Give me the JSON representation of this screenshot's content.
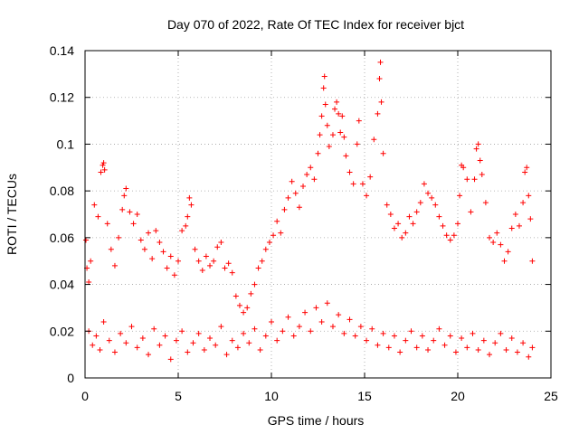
{
  "chart_data": {
    "type": "scatter",
    "title": "Day 070 of 2022, Rate Of TEC Index for receiver bjct",
    "xlabel": "GPS time / hours",
    "ylabel": "ROTI / TECUs",
    "xlim": [
      0,
      25
    ],
    "ylim": [
      0,
      0.14
    ],
    "xticks": [
      0,
      5,
      10,
      15,
      20,
      25
    ],
    "yticks": [
      0,
      0.02,
      0.04,
      0.06,
      0.08,
      0.1,
      0.12,
      0.14
    ],
    "xtick_labels": [
      "0",
      "5",
      "10",
      "15",
      "20",
      "25"
    ],
    "ytick_labels": [
      "0",
      "0.02",
      "0.04",
      "0.06",
      "0.08",
      "0.1",
      "0.12",
      "0.14"
    ],
    "grid": true,
    "marker": "+",
    "color": "#ff0000",
    "series": [
      {
        "name": "ROTI",
        "points": [
          [
            0.05,
            0.059
          ],
          [
            0.1,
            0.047
          ],
          [
            0.2,
            0.041
          ],
          [
            0.3,
            0.05
          ],
          [
            0.5,
            0.074
          ],
          [
            0.7,
            0.069
          ],
          [
            0.85,
            0.088
          ],
          [
            0.95,
            0.091
          ],
          [
            1.0,
            0.092
          ],
          [
            1.05,
            0.089
          ],
          [
            1.2,
            0.066
          ],
          [
            1.4,
            0.055
          ],
          [
            1.6,
            0.048
          ],
          [
            1.8,
            0.06
          ],
          [
            2.0,
            0.072
          ],
          [
            2.1,
            0.078
          ],
          [
            2.2,
            0.081
          ],
          [
            2.4,
            0.071
          ],
          [
            2.6,
            0.066
          ],
          [
            2.8,
            0.07
          ],
          [
            3.0,
            0.059
          ],
          [
            3.2,
            0.055
          ],
          [
            3.4,
            0.062
          ],
          [
            3.6,
            0.051
          ],
          [
            3.8,
            0.063
          ],
          [
            4.0,
            0.058
          ],
          [
            4.2,
            0.054
          ],
          [
            4.4,
            0.047
          ],
          [
            4.6,
            0.052
          ],
          [
            4.8,
            0.044
          ],
          [
            5.0,
            0.05
          ],
          [
            5.2,
            0.063
          ],
          [
            5.4,
            0.065
          ],
          [
            5.5,
            0.069
          ],
          [
            5.6,
            0.077
          ],
          [
            5.7,
            0.074
          ],
          [
            5.9,
            0.055
          ],
          [
            6.1,
            0.05
          ],
          [
            6.3,
            0.046
          ],
          [
            6.5,
            0.052
          ],
          [
            6.7,
            0.048
          ],
          [
            6.9,
            0.05
          ],
          [
            7.1,
            0.056
          ],
          [
            7.3,
            0.058
          ],
          [
            7.5,
            0.047
          ],
          [
            7.7,
            0.049
          ],
          [
            7.9,
            0.045
          ],
          [
            8.1,
            0.035
          ],
          [
            8.3,
            0.031
          ],
          [
            8.5,
            0.028
          ],
          [
            8.7,
            0.03
          ],
          [
            8.9,
            0.036
          ],
          [
            9.1,
            0.04
          ],
          [
            9.3,
            0.047
          ],
          [
            9.5,
            0.05
          ],
          [
            9.7,
            0.055
          ],
          [
            9.9,
            0.058
          ],
          [
            10.1,
            0.061
          ],
          [
            10.3,
            0.067
          ],
          [
            10.5,
            0.062
          ],
          [
            10.7,
            0.072
          ],
          [
            10.9,
            0.077
          ],
          [
            11.1,
            0.084
          ],
          [
            11.3,
            0.079
          ],
          [
            11.5,
            0.073
          ],
          [
            11.7,
            0.082
          ],
          [
            11.9,
            0.087
          ],
          [
            12.1,
            0.09
          ],
          [
            12.3,
            0.085
          ],
          [
            12.5,
            0.096
          ],
          [
            12.6,
            0.104
          ],
          [
            12.7,
            0.112
          ],
          [
            12.8,
            0.124
          ],
          [
            12.85,
            0.129
          ],
          [
            12.9,
            0.117
          ],
          [
            13.0,
            0.108
          ],
          [
            13.1,
            0.099
          ],
          [
            13.3,
            0.104
          ],
          [
            13.4,
            0.115
          ],
          [
            13.5,
            0.118
          ],
          [
            13.6,
            0.113
          ],
          [
            13.7,
            0.105
          ],
          [
            13.8,
            0.112
          ],
          [
            13.9,
            0.103
          ],
          [
            14.0,
            0.095
          ],
          [
            14.2,
            0.088
          ],
          [
            14.4,
            0.083
          ],
          [
            14.6,
            0.1
          ],
          [
            14.7,
            0.11
          ],
          [
            14.9,
            0.083
          ],
          [
            15.1,
            0.078
          ],
          [
            15.3,
            0.086
          ],
          [
            15.5,
            0.102
          ],
          [
            15.7,
            0.113
          ],
          [
            15.8,
            0.128
          ],
          [
            15.85,
            0.135
          ],
          [
            15.9,
            0.118
          ],
          [
            16.0,
            0.096
          ],
          [
            16.2,
            0.074
          ],
          [
            16.4,
            0.07
          ],
          [
            16.6,
            0.064
          ],
          [
            16.8,
            0.066
          ],
          [
            17.0,
            0.06
          ],
          [
            17.2,
            0.062
          ],
          [
            17.4,
            0.069
          ],
          [
            17.6,
            0.066
          ],
          [
            17.8,
            0.071
          ],
          [
            18.0,
            0.075
          ],
          [
            18.2,
            0.083
          ],
          [
            18.4,
            0.079
          ],
          [
            18.6,
            0.077
          ],
          [
            18.8,
            0.074
          ],
          [
            19.0,
            0.069
          ],
          [
            19.2,
            0.065
          ],
          [
            19.4,
            0.061
          ],
          [
            19.6,
            0.059
          ],
          [
            19.8,
            0.061
          ],
          [
            20.0,
            0.066
          ],
          [
            20.1,
            0.078
          ],
          [
            20.2,
            0.091
          ],
          [
            20.3,
            0.09
          ],
          [
            20.5,
            0.085
          ],
          [
            20.7,
            0.071
          ],
          [
            20.9,
            0.085
          ],
          [
            21.0,
            0.098
          ],
          [
            21.1,
            0.1
          ],
          [
            21.2,
            0.093
          ],
          [
            21.3,
            0.087
          ],
          [
            21.5,
            0.075
          ],
          [
            21.7,
            0.06
          ],
          [
            21.9,
            0.058
          ],
          [
            22.1,
            0.062
          ],
          [
            22.3,
            0.057
          ],
          [
            22.5,
            0.05
          ],
          [
            22.7,
            0.054
          ],
          [
            22.9,
            0.064
          ],
          [
            23.1,
            0.07
          ],
          [
            23.3,
            0.065
          ],
          [
            23.5,
            0.075
          ],
          [
            23.6,
            0.088
          ],
          [
            23.7,
            0.09
          ],
          [
            23.8,
            0.078
          ],
          [
            23.9,
            0.068
          ],
          [
            24.0,
            0.05
          ],
          [
            0.2,
            0.02
          ],
          [
            0.4,
            0.014
          ],
          [
            0.6,
            0.018
          ],
          [
            0.8,
            0.012
          ],
          [
            1.0,
            0.024
          ],
          [
            1.3,
            0.016
          ],
          [
            1.6,
            0.011
          ],
          [
            1.9,
            0.019
          ],
          [
            2.2,
            0.015
          ],
          [
            2.5,
            0.022
          ],
          [
            2.8,
            0.013
          ],
          [
            3.1,
            0.017
          ],
          [
            3.4,
            0.01
          ],
          [
            3.7,
            0.021
          ],
          [
            4.0,
            0.014
          ],
          [
            4.3,
            0.018
          ],
          [
            4.6,
            0.008
          ],
          [
            4.9,
            0.016
          ],
          [
            5.2,
            0.02
          ],
          [
            5.5,
            0.011
          ],
          [
            5.8,
            0.015
          ],
          [
            6.1,
            0.019
          ],
          [
            6.4,
            0.012
          ],
          [
            6.7,
            0.017
          ],
          [
            7.0,
            0.014
          ],
          [
            7.3,
            0.022
          ],
          [
            7.6,
            0.01
          ],
          [
            7.9,
            0.016
          ],
          [
            8.2,
            0.013
          ],
          [
            8.5,
            0.019
          ],
          [
            8.8,
            0.015
          ],
          [
            9.1,
            0.021
          ],
          [
            9.4,
            0.012
          ],
          [
            9.7,
            0.018
          ],
          [
            10.0,
            0.024
          ],
          [
            10.3,
            0.016
          ],
          [
            10.6,
            0.02
          ],
          [
            10.9,
            0.026
          ],
          [
            11.2,
            0.018
          ],
          [
            11.5,
            0.022
          ],
          [
            11.8,
            0.028
          ],
          [
            12.1,
            0.02
          ],
          [
            12.4,
            0.03
          ],
          [
            12.7,
            0.024
          ],
          [
            13.0,
            0.032
          ],
          [
            13.3,
            0.022
          ],
          [
            13.6,
            0.027
          ],
          [
            13.9,
            0.019
          ],
          [
            14.2,
            0.025
          ],
          [
            14.5,
            0.018
          ],
          [
            14.8,
            0.022
          ],
          [
            15.1,
            0.016
          ],
          [
            15.4,
            0.021
          ],
          [
            15.7,
            0.014
          ],
          [
            16.0,
            0.019
          ],
          [
            16.3,
            0.013
          ],
          [
            16.6,
            0.018
          ],
          [
            16.9,
            0.011
          ],
          [
            17.2,
            0.016
          ],
          [
            17.5,
            0.02
          ],
          [
            17.8,
            0.013
          ],
          [
            18.1,
            0.018
          ],
          [
            18.4,
            0.012
          ],
          [
            18.7,
            0.016
          ],
          [
            19.0,
            0.021
          ],
          [
            19.3,
            0.014
          ],
          [
            19.6,
            0.018
          ],
          [
            19.9,
            0.011
          ],
          [
            20.2,
            0.017
          ],
          [
            20.5,
            0.013
          ],
          [
            20.8,
            0.019
          ],
          [
            21.1,
            0.012
          ],
          [
            21.4,
            0.016
          ],
          [
            21.7,
            0.01
          ],
          [
            22.0,
            0.015
          ],
          [
            22.3,
            0.019
          ],
          [
            22.6,
            0.012
          ],
          [
            22.9,
            0.017
          ],
          [
            23.2,
            0.011
          ],
          [
            23.5,
            0.015
          ],
          [
            23.8,
            0.009
          ],
          [
            24.0,
            0.013
          ]
        ]
      }
    ]
  }
}
